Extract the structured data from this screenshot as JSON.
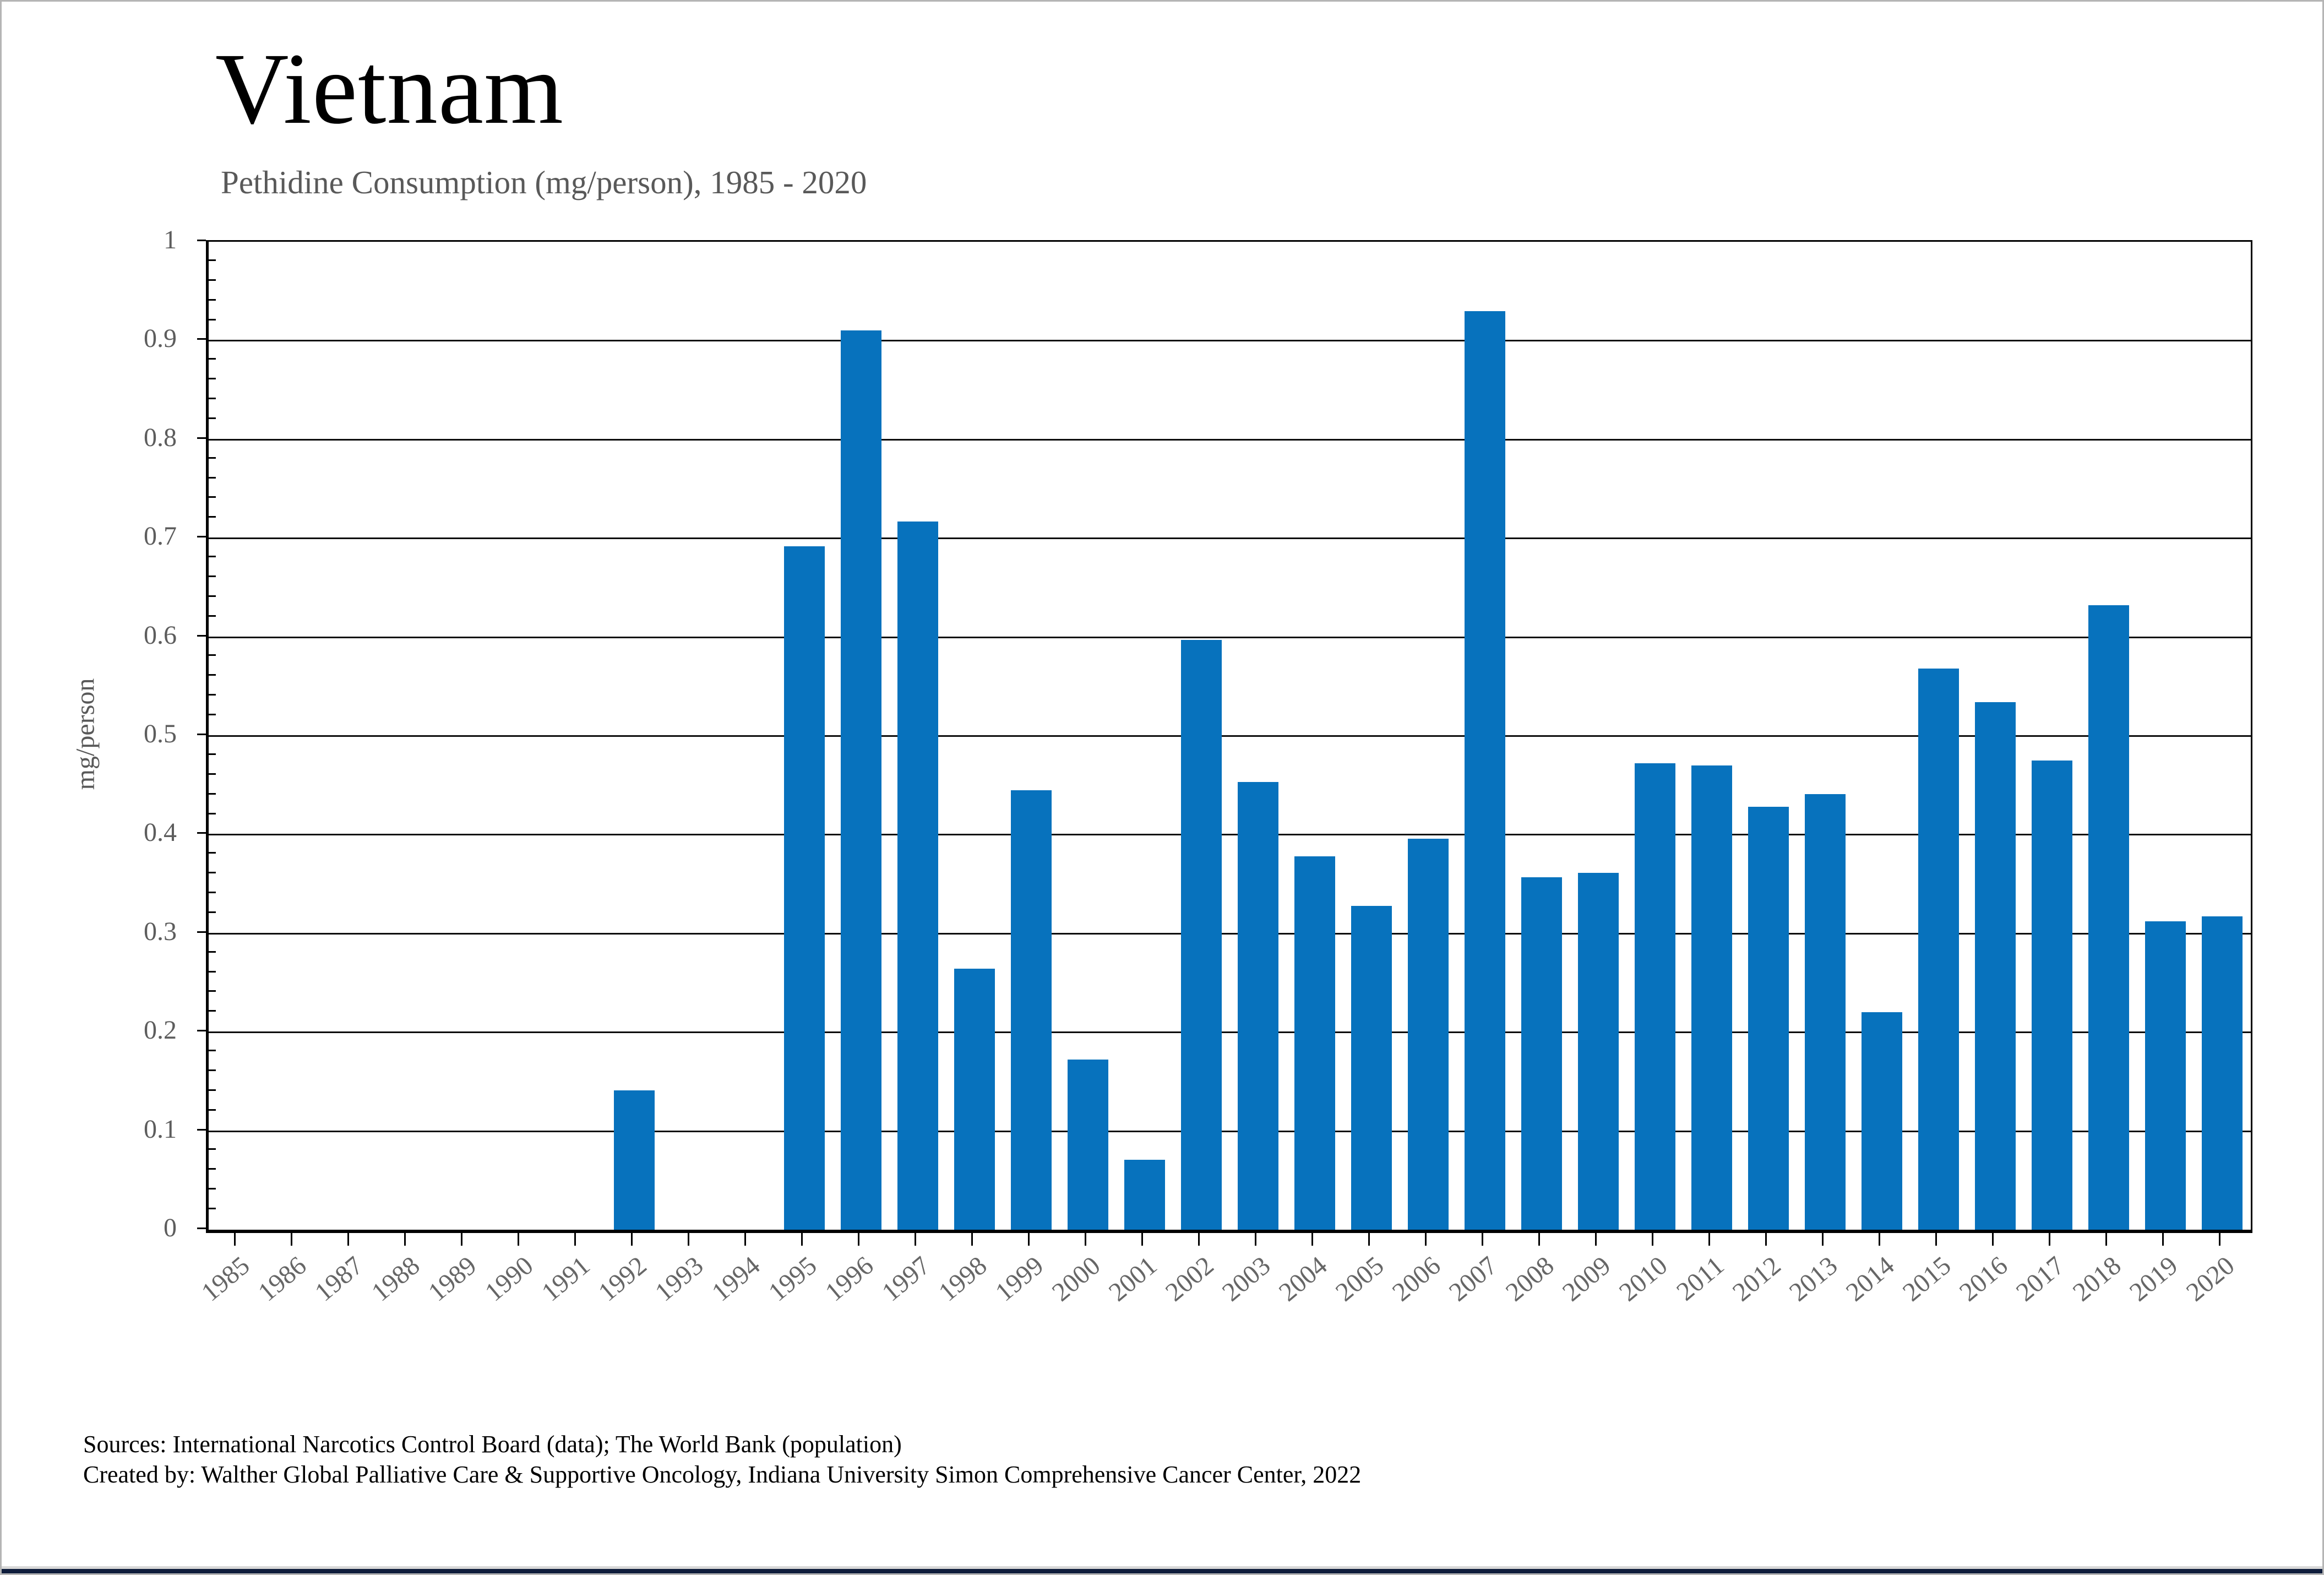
{
  "window": {
    "background": "#ffffff",
    "frame_border_color": "#b5b5b5",
    "bottom_strip_gray": "#d8d8d8",
    "bottom_strip_navy": "#0f1d3c"
  },
  "header": {
    "title": "Vietnam",
    "subtitle": "Pethidine Consumption (mg/person), 1985 - 2020"
  },
  "footer": {
    "line1": "Sources: International Narcotics Control Board (data); The World Bank (population)",
    "line2": "Created by: Walther Global Palliative Care & Supportive Oncology, Indiana University Simon Comprehensive Cancer Center, 2022"
  },
  "chart_data": {
    "type": "bar",
    "title": "Vietnam",
    "subtitle": "Pethidine Consumption (mg/person), 1985 - 2020",
    "xlabel": "",
    "ylabel": "mg/person",
    "ylim": [
      0,
      1
    ],
    "ytick_step": 0.1,
    "yminor_step": 0.02,
    "ytick_labels": [
      "0",
      "0.1",
      "0.2",
      "0.3",
      "0.4",
      "0.5",
      "0.6",
      "0.7",
      "0.8",
      "0.9",
      "1"
    ],
    "grid": "horizontal-major",
    "legend": "none",
    "bar_color": "#0772bd",
    "axis_color": "#000000",
    "tick_label_color": "#5d5d5d",
    "categories": [
      "1985",
      "1986",
      "1987",
      "1988",
      "1989",
      "1990",
      "1991",
      "1992",
      "1993",
      "1994",
      "1995",
      "1996",
      "1997",
      "1998",
      "1999",
      "2000",
      "2001",
      "2002",
      "2003",
      "2004",
      "2005",
      "2006",
      "2007",
      "2008",
      "2009",
      "2010",
      "2011",
      "2012",
      "2013",
      "2014",
      "2015",
      "2016",
      "2017",
      "2018",
      "2019",
      "2020"
    ],
    "values": [
      0,
      0,
      0,
      0,
      0,
      0,
      0,
      0.141,
      0,
      0,
      0.692,
      0.91,
      0.717,
      0.264,
      0.445,
      0.172,
      0.071,
      0.597,
      0.453,
      0.378,
      0.328,
      0.396,
      0.93,
      0.357,
      0.361,
      0.472,
      0.47,
      0.428,
      0.441,
      0.22,
      0.568,
      0.534,
      0.475,
      0.632,
      0.312,
      0.317
    ]
  }
}
